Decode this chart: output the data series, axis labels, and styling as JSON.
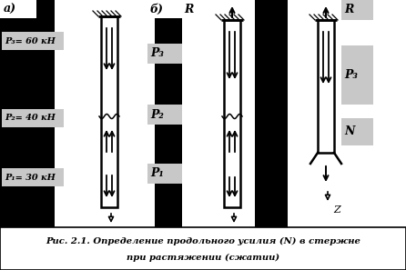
{
  "bg_color": "#000000",
  "white_color": "#ffffff",
  "gray_color": "#c8c8c8",
  "black_color": "#000000",
  "caption_line1": "Рис. 2.1. Определение продольного усилия (N) в стержне",
  "caption_line2": "при растяжении (сжатии)",
  "label_a": "а)",
  "label_b": "б)",
  "label_P3a": "P₃= 60 кН",
  "label_P2a": "P₂= 40 кН",
  "label_P1a": "P₁= 30 кН",
  "label_R": "R",
  "label_P3": "P₃",
  "label_P2": "P₂",
  "label_P1": "P₁",
  "label_N": "N",
  "label_Z": "Z",
  "fig_width": 4.46,
  "fig_height": 2.97,
  "dpi": 100
}
